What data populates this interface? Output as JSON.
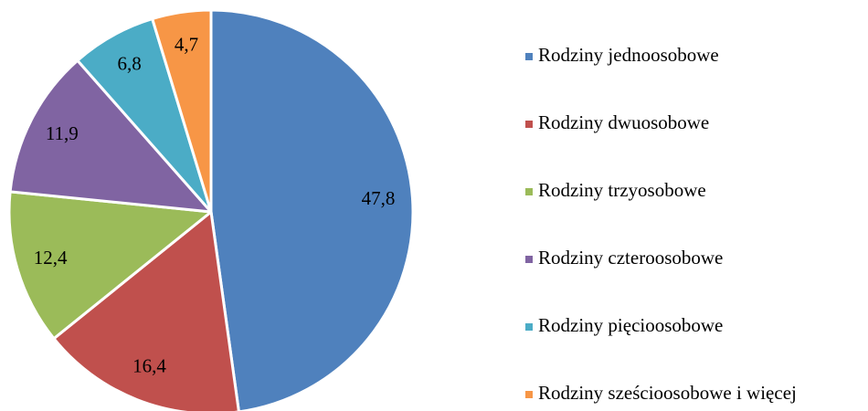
{
  "chart_data": {
    "type": "pie",
    "categories": [
      "Rodziny jednoosobowe",
      "Rodziny dwuosobowe",
      "Rodziny trzyosobowe",
      "Rodziny czteroosobowe",
      "Rodziny pięcioosobowe",
      "Rodziny sześcioosobowe i więcej"
    ],
    "values": [
      47.8,
      16.4,
      12.4,
      11.9,
      6.8,
      4.7
    ],
    "value_labels": [
      "47,8",
      "16,4",
      "12,4",
      "11,9",
      "6,8",
      "4,7"
    ],
    "colors": [
      "#4f81bd",
      "#c0504d",
      "#9bbb59",
      "#8064a2",
      "#4bacc6",
      "#f79646"
    ],
    "legend": "right"
  }
}
